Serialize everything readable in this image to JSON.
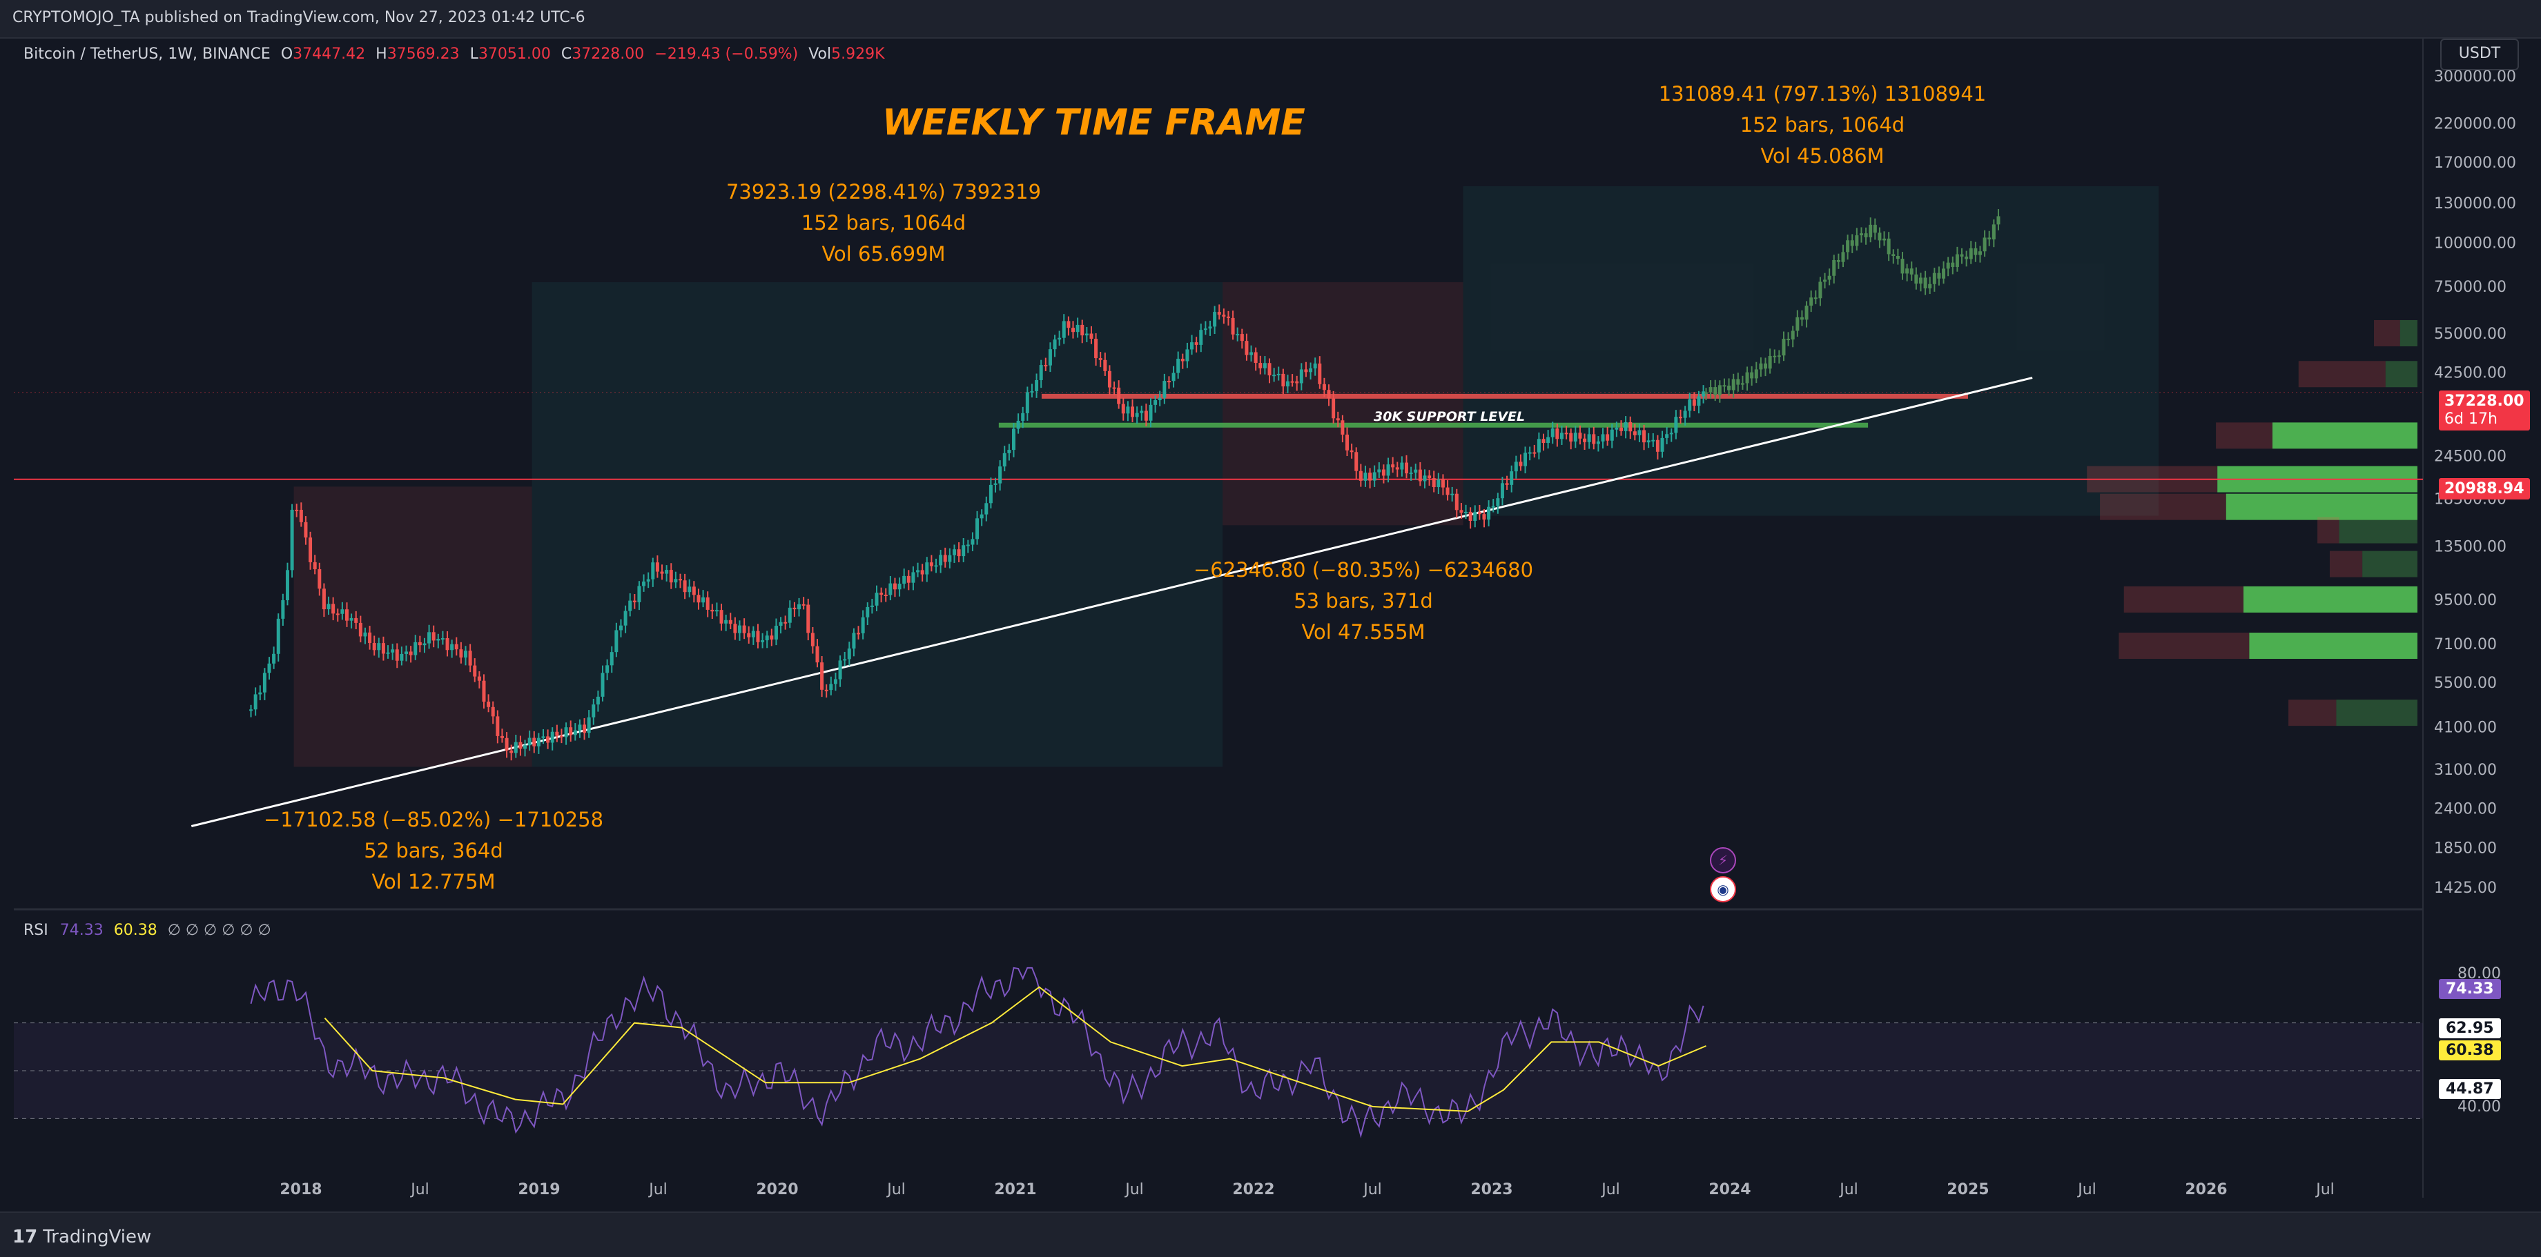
{
  "header": {
    "published": "CRYPTOMOJO_TA published on TradingView.com, Nov 27, 2023 01:42 UTC-6"
  },
  "legend": {
    "symbol": "Bitcoin / TetherUS, 1W, BINANCE",
    "o_label": "O",
    "o": "37447.42",
    "h_label": "H",
    "h": "37569.23",
    "l_label": "L",
    "l": "37051.00",
    "c_label": "C",
    "c": "37228.00",
    "change": "−219.43 (−0.59%)",
    "vol_label": "Vol",
    "vol": "5.929K"
  },
  "currency": "USDT",
  "title_annotation": "WEEKLY TIME FRAME",
  "support_label": "30K SUPPORT LEVEL",
  "measurements": [
    {
      "line1": "−17102.58 (−85.02%) −1710258",
      "line2": "52 bars, 364d",
      "line3": "Vol 12.775M"
    },
    {
      "line1": "73923.19 (2298.41%) 7392319",
      "line2": "152 bars, 1064d",
      "line3": "Vol 65.699M"
    },
    {
      "line1": "−62346.80 (−80.35%) −6234680",
      "line2": "53 bars, 371d",
      "line3": "Vol 47.555M"
    },
    {
      "line1": "131089.41 (797.13%) 13108941",
      "line2": "152 bars, 1064d",
      "line3": "Vol 45.086M"
    }
  ],
  "price_tags": {
    "last": "37228.00",
    "countdown": "6d 17h",
    "level": "20988.94"
  },
  "rsi": {
    "label": "RSI",
    "value": "74.33",
    "ma": "60.38",
    "extra": "∅ ∅ ∅ ∅ ∅ ∅",
    "tags": {
      "rsi": "74.33",
      "upper": "62.95",
      "ma": "60.38",
      "lower": "44.87"
    },
    "axis": [
      "80.00",
      "40.00"
    ]
  },
  "footer": {
    "brand": "TradingView"
  },
  "colors": {
    "up": "#26a69a",
    "down": "#ef5350",
    "accent": "#ff9800",
    "rsi": "#7e57c2",
    "rsi_ma": "#ffeb3b",
    "support": "#4caf50",
    "resistance": "#f23645"
  },
  "chart_data": {
    "type": "candlestick",
    "timeframe": "1W",
    "y_scale": "log",
    "y_ticks": [
      "300000.00",
      "220000.00",
      "170000.00",
      "130000.00",
      "100000.00",
      "75000.00",
      "55000.00",
      "42500.00",
      "24500.00",
      "18500.00",
      "13500.00",
      "9500.00",
      "7100.00",
      "5500.00",
      "4100.00",
      "3100.00",
      "2400.00",
      "1850.00",
      "1425.00"
    ],
    "x_ticks": [
      "2018",
      "Jul",
      "2019",
      "Jul",
      "2020",
      "Jul",
      "2021",
      "Jul",
      "2022",
      "Jul",
      "2023",
      "Jul",
      "2024",
      "Jul",
      "2025",
      "Jul",
      "2026",
      "Jul"
    ],
    "ylim": [
      1300,
      320000
    ],
    "price_path": [
      {
        "t": 2017.79,
        "p": 4600
      },
      {
        "t": 2017.88,
        "p": 6500
      },
      {
        "t": 2017.94,
        "p": 11000
      },
      {
        "t": 2017.97,
        "p": 19000
      },
      {
        "t": 2018.02,
        "p": 14000
      },
      {
        "t": 2018.1,
        "p": 9000
      },
      {
        "t": 2018.2,
        "p": 8500
      },
      {
        "t": 2018.3,
        "p": 7000
      },
      {
        "t": 2018.42,
        "p": 6500
      },
      {
        "t": 2018.55,
        "p": 7500
      },
      {
        "t": 2018.7,
        "p": 6500
      },
      {
        "t": 2018.86,
        "p": 3500
      },
      {
        "t": 2018.96,
        "p": 3700
      },
      {
        "t": 2019.2,
        "p": 4100
      },
      {
        "t": 2019.35,
        "p": 8500
      },
      {
        "t": 2019.48,
        "p": 11800
      },
      {
        "t": 2019.6,
        "p": 10500
      },
      {
        "t": 2019.8,
        "p": 8000
      },
      {
        "t": 2019.95,
        "p": 7200
      },
      {
        "t": 2020.1,
        "p": 9500
      },
      {
        "t": 2020.2,
        "p": 5000
      },
      {
        "t": 2020.4,
        "p": 9500
      },
      {
        "t": 2020.6,
        "p": 11500
      },
      {
        "t": 2020.8,
        "p": 13500
      },
      {
        "t": 2020.95,
        "p": 24000
      },
      {
        "t": 2021.05,
        "p": 36000
      },
      {
        "t": 2021.2,
        "p": 58000
      },
      {
        "t": 2021.3,
        "p": 55000
      },
      {
        "t": 2021.45,
        "p": 33000
      },
      {
        "t": 2021.55,
        "p": 32000
      },
      {
        "t": 2021.7,
        "p": 47000
      },
      {
        "t": 2021.86,
        "p": 64000
      },
      {
        "t": 2022.0,
        "p": 46000
      },
      {
        "t": 2022.15,
        "p": 39000
      },
      {
        "t": 2022.25,
        "p": 45000
      },
      {
        "t": 2022.45,
        "p": 21000
      },
      {
        "t": 2022.6,
        "p": 23000
      },
      {
        "t": 2022.8,
        "p": 20000
      },
      {
        "t": 2022.88,
        "p": 16500
      },
      {
        "t": 2022.98,
        "p": 16600
      },
      {
        "t": 2023.1,
        "p": 23000
      },
      {
        "t": 2023.25,
        "p": 28500
      },
      {
        "t": 2023.45,
        "p": 27000
      },
      {
        "t": 2023.55,
        "p": 30000
      },
      {
        "t": 2023.7,
        "p": 26000
      },
      {
        "t": 2023.82,
        "p": 34000
      },
      {
        "t": 2023.9,
        "p": 37228
      }
    ],
    "projection_path": [
      {
        "t": 2023.9,
        "p": 37228
      },
      {
        "t": 2024.05,
        "p": 40000
      },
      {
        "t": 2024.2,
        "p": 48000
      },
      {
        "t": 2024.35,
        "p": 70000
      },
      {
        "t": 2024.5,
        "p": 100000
      },
      {
        "t": 2024.6,
        "p": 110000
      },
      {
        "t": 2024.72,
        "p": 85000
      },
      {
        "t": 2024.82,
        "p": 75000
      },
      {
        "t": 2024.95,
        "p": 90000
      },
      {
        "t": 2025.05,
        "p": 95000
      },
      {
        "t": 2025.13,
        "p": 118000
      }
    ],
    "rsi_path": [
      {
        "t": 2017.79,
        "v": 78
      },
      {
        "t": 2017.97,
        "v": 88
      },
      {
        "t": 2018.1,
        "v": 55
      },
      {
        "t": 2018.4,
        "v": 46
      },
      {
        "t": 2018.6,
        "v": 48
      },
      {
        "t": 2018.86,
        "v": 28
      },
      {
        "t": 2019.1,
        "v": 38
      },
      {
        "t": 2019.35,
        "v": 78
      },
      {
        "t": 2019.5,
        "v": 83
      },
      {
        "t": 2019.8,
        "v": 40
      },
      {
        "t": 2020.0,
        "v": 50
      },
      {
        "t": 2020.2,
        "v": 32
      },
      {
        "t": 2020.4,
        "v": 60
      },
      {
        "t": 2020.6,
        "v": 62
      },
      {
        "t": 2020.95,
        "v": 88
      },
      {
        "t": 2021.05,
        "v": 92
      },
      {
        "t": 2021.3,
        "v": 66
      },
      {
        "t": 2021.45,
        "v": 38
      },
      {
        "t": 2021.7,
        "v": 62
      },
      {
        "t": 2021.86,
        "v": 65
      },
      {
        "t": 2022.0,
        "v": 40
      },
      {
        "t": 2022.25,
        "v": 52
      },
      {
        "t": 2022.45,
        "v": 25
      },
      {
        "t": 2022.6,
        "v": 40
      },
      {
        "t": 2022.88,
        "v": 30
      },
      {
        "t": 2023.1,
        "v": 66
      },
      {
        "t": 2023.25,
        "v": 70
      },
      {
        "t": 2023.45,
        "v": 54
      },
      {
        "t": 2023.55,
        "v": 63
      },
      {
        "t": 2023.7,
        "v": 46
      },
      {
        "t": 2023.82,
        "v": 70
      },
      {
        "t": 2023.9,
        "v": 74.33
      }
    ],
    "rsi_ma_path": [
      {
        "t": 2018.1,
        "v": 72
      },
      {
        "t": 2018.3,
        "v": 50
      },
      {
        "t": 2018.6,
        "v": 47
      },
      {
        "t": 2018.9,
        "v": 38
      },
      {
        "t": 2019.1,
        "v": 36
      },
      {
        "t": 2019.4,
        "v": 70
      },
      {
        "t": 2019.6,
        "v": 68
      },
      {
        "t": 2019.95,
        "v": 45
      },
      {
        "t": 2020.3,
        "v": 45
      },
      {
        "t": 2020.6,
        "v": 55
      },
      {
        "t": 2020.9,
        "v": 70
      },
      {
        "t": 2021.1,
        "v": 85
      },
      {
        "t": 2021.4,
        "v": 62
      },
      {
        "t": 2021.7,
        "v": 52
      },
      {
        "t": 2021.9,
        "v": 55
      },
      {
        "t": 2022.2,
        "v": 45
      },
      {
        "t": 2022.5,
        "v": 35
      },
      {
        "t": 2022.9,
        "v": 33
      },
      {
        "t": 2023.05,
        "v": 42
      },
      {
        "t": 2023.25,
        "v": 62
      },
      {
        "t": 2023.45,
        "v": 62
      },
      {
        "t": 2023.7,
        "v": 52
      },
      {
        "t": 2023.9,
        "v": 60.38
      }
    ],
    "rsi_levels": {
      "upper": 70,
      "middle": 50,
      "lower": 30,
      "ylim": [
        20,
        95
      ]
    },
    "horizontal_levels": [
      {
        "price": 20988.94,
        "color": "#f23645",
        "kind": "full-line"
      },
      {
        "price": 37228.0,
        "color": "#f23645",
        "kind": "last-price"
      },
      {
        "price": 30000,
        "t_start": 2020.93,
        "t_end": 2024.58,
        "color": "#4caf50",
        "kind": "support"
      },
      {
        "price": 36300,
        "t_start": 2021.11,
        "t_end": 2025.0,
        "color": "#ef5350",
        "kind": "resistance"
      }
    ],
    "trendline": [
      {
        "t": 2017.54,
        "p": 2130
      },
      {
        "t": 2025.27,
        "p": 41000
      }
    ],
    "boxes": [
      {
        "t0": 2017.97,
        "t1": 2018.97,
        "p0": 3150,
        "p1": 20000,
        "kind": "down"
      },
      {
        "t0": 2018.97,
        "t1": 2021.87,
        "p0": 3150,
        "p1": 77000,
        "kind": "up"
      },
      {
        "t0": 2021.87,
        "t1": 2022.88,
        "p0": 15500,
        "p1": 77000,
        "kind": "down"
      },
      {
        "t0": 2022.88,
        "t1": 2025.8,
        "p0": 16500,
        "p1": 145000,
        "kind": "up"
      }
    ],
    "volume_profile": [
      {
        "price": 28000,
        "up": 0.5,
        "down": 0.26
      },
      {
        "price": 21000,
        "up": 0.69,
        "down": 0.6
      },
      {
        "price": 17500,
        "up": 0.66,
        "down": 0.58
      },
      {
        "price": 15000,
        "up": 0.27,
        "down": 0.1
      },
      {
        "price": 12000,
        "up": 0.19,
        "down": 0.15
      },
      {
        "price": 9500,
        "up": 0.6,
        "down": 0.55
      },
      {
        "price": 7000,
        "up": 0.58,
        "down": 0.6
      },
      {
        "price": 4500,
        "up": 0.28,
        "down": 0.22
      },
      {
        "price": 42000,
        "up": 0.11,
        "down": 0.4
      },
      {
        "price": 55000,
        "up": 0.06,
        "down": 0.12
      }
    ]
  }
}
